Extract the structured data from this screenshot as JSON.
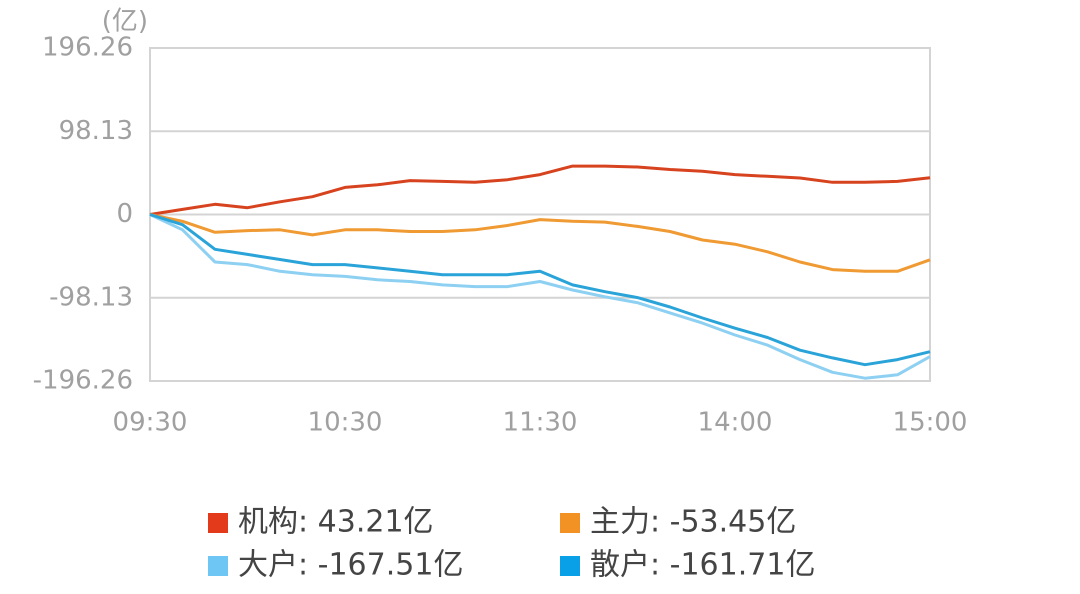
{
  "chart_data": {
    "type": "line",
    "y_unit": "(亿)",
    "categories": [
      "09:30",
      null,
      null,
      null,
      null,
      null,
      "10:30",
      null,
      null,
      null,
      null,
      null,
      "11:30",
      null,
      null,
      null,
      null,
      null,
      "14:00",
      null,
      null,
      null,
      null,
      null,
      "15:00"
    ],
    "series": [
      {
        "name": "机构: 43.21亿",
        "color": "#d7431f",
        "legend_color": "#e23a1a",
        "values": [
          0,
          6,
          12,
          8,
          15,
          21,
          32,
          35,
          40,
          39,
          38,
          41,
          47,
          57,
          57,
          56,
          53,
          51,
          47,
          45,
          43,
          38,
          38,
          39,
          43.21
        ]
      },
      {
        "name": "主力: -53.45亿",
        "color": "#ef9a32",
        "legend_color": "#f39224",
        "values": [
          0,
          -8,
          -21,
          -19,
          -18,
          -24,
          -18,
          -18,
          -20,
          -20,
          -18,
          -13,
          -6,
          -8,
          -9,
          -14,
          -20,
          -30,
          -35,
          -44,
          -56,
          -65,
          -67,
          -67,
          -53.45
        ]
      },
      {
        "name": "大户: -167.51亿",
        "color": "#8dd0f2",
        "legend_color": "#6ec6f5",
        "values": [
          0,
          -18,
          -56,
          -59,
          -67,
          -71,
          -73,
          -77,
          -79,
          -83,
          -85,
          -85,
          -79,
          -89,
          -97,
          -104,
          -116,
          -128,
          -142,
          -154,
          -171,
          -186,
          -193,
          -189,
          -167.51
        ]
      },
      {
        "name": "散户: -161.71亿",
        "color": "#2aa4d8",
        "legend_color": "#0aa0e8",
        "values": [
          0,
          -12,
          -41,
          -47,
          -53,
          -59,
          -59,
          -63,
          -67,
          -71,
          -71,
          -71,
          -67,
          -83,
          -91,
          -98,
          -109,
          -122,
          -134,
          -145,
          -160,
          -169,
          -177,
          -171,
          -161.71
        ]
      }
    ],
    "ylim": [
      -196.26,
      196.26
    ],
    "yticks": [
      196.26,
      98.13,
      0,
      -98.13,
      -196.26
    ],
    "grid": true
  }
}
